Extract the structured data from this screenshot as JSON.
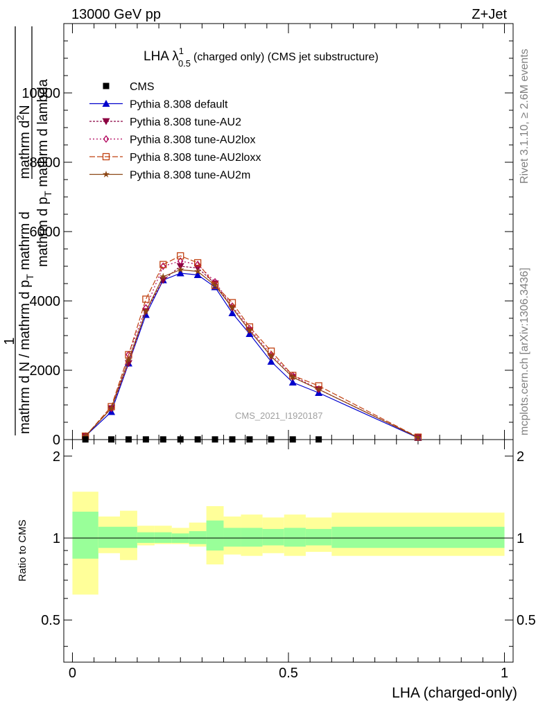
{
  "header": {
    "left": "13000 GeV pp",
    "right": "Z+Jet"
  },
  "title": {
    "prefix": "LHA λ",
    "sup": "1",
    "sub": "0.5",
    "suffix": "(charged only) (CMS jet substructure)"
  },
  "side_labels": {
    "rivet": "Rivet 3.1.10, ≥ 2.6M events",
    "mcplots": "mcplots.cern.ch [arXiv:1306.3436]"
  },
  "watermark": "CMS_2021_I1920187",
  "ylabel": {
    "one": "1",
    "den": "mathrm d N / mathrm d p",
    "den_sub": "T",
    "den_tail": " mathrm d",
    "num1": "mathrm d",
    "num1_sup": "2",
    "num1_tail": "N",
    "num2": "mathrm d p",
    "num2_sub": "T",
    "num2_tail": " mathrm d lambda"
  },
  "ratio_ylabel": "Ratio to CMS",
  "xlabel": "LHA (charged-only)",
  "main_ticks": {
    "y": [
      {
        "value": 0,
        "label": "0"
      },
      {
        "value": 2000,
        "label": "2000"
      },
      {
        "value": 4000,
        "label": "4000"
      },
      {
        "value": 6000,
        "label": "6000"
      },
      {
        "value": 8000,
        "label": "8000"
      },
      {
        "value": 10000,
        "label": "10000"
      }
    ]
  },
  "ratio_ticks": {
    "y": [
      {
        "value": 0.5,
        "label": "0.5"
      },
      {
        "value": 1,
        "label": "1"
      },
      {
        "value": 2,
        "label": "2"
      }
    ]
  },
  "x_ticks": [
    {
      "value": 0,
      "label": "0"
    },
    {
      "value": 0.5,
      "label": "0.5"
    },
    {
      "value": 1,
      "label": "1"
    }
  ],
  "legend": [
    {
      "label": "CMS",
      "marker": "square",
      "color": "#000000",
      "dash": ""
    },
    {
      "label": "Pythia 8.308 default",
      "marker": "triangle-up",
      "color": "#0000cc",
      "dash": ""
    },
    {
      "label": "Pythia 8.308 tune-AU2",
      "marker": "triangle-down",
      "color": "#8b0040",
      "dash": "3,2"
    },
    {
      "label": "Pythia 8.308 tune-AU2lox",
      "marker": "diamond-open",
      "color": "#b0005a",
      "dash": "2,3"
    },
    {
      "label": "Pythia 8.308 tune-AU2loxx",
      "marker": "square-open",
      "color": "#c04010",
      "dash": "8,3"
    },
    {
      "label": "Pythia 8.308 tune-AU2m",
      "marker": "star",
      "color": "#8b4513",
      "dash": ""
    }
  ],
  "chart_data": {
    "type": "line",
    "xlim": [
      -0.02,
      1.02
    ],
    "ylim": [
      0,
      12000
    ],
    "ratio_ylim": [
      0.35,
      2.3
    ],
    "ratio_log": true,
    "x": [
      0.03,
      0.09,
      0.13,
      0.17,
      0.21,
      0.25,
      0.29,
      0.33,
      0.37,
      0.41,
      0.46,
      0.51,
      0.57,
      0.8
    ],
    "data": {
      "name": "CMS",
      "x": [
        0.03,
        0.09,
        0.13,
        0.17,
        0.21,
        0.25,
        0.29,
        0.33,
        0.37,
        0.41,
        0.46,
        0.51,
        0.57
      ],
      "values": [
        5,
        5,
        5,
        5,
        5,
        5,
        5,
        5,
        5,
        5,
        5,
        5,
        5
      ]
    },
    "series": [
      {
        "name": "Pythia 8.308 default",
        "values": [
          100,
          800,
          2200,
          3600,
          4600,
          4800,
          4750,
          4400,
          3650,
          3050,
          2250,
          1650,
          1350,
          50
        ]
      },
      {
        "name": "Pythia 8.308 tune-AU2",
        "values": [
          100,
          900,
          2200,
          3700,
          4600,
          5000,
          4950,
          4500,
          3800,
          3150,
          2400,
          1800,
          1450,
          60
        ]
      },
      {
        "name": "Pythia 8.308 tune-AU2lox",
        "values": [
          100,
          900,
          2450,
          3800,
          5000,
          5150,
          5050,
          4550,
          3850,
          3200,
          2450,
          1850,
          1450,
          70
        ]
      },
      {
        "name": "Pythia 8.308 tune-AU2loxx",
        "values": [
          100,
          950,
          2450,
          4050,
          5050,
          5300,
          5100,
          4450,
          3950,
          3250,
          2550,
          1850,
          1550,
          70
        ]
      },
      {
        "name": "Pythia 8.308 tune-AU2m",
        "values": [
          100,
          900,
          2300,
          3700,
          4700,
          4900,
          4850,
          4450,
          3800,
          3150,
          2400,
          1800,
          1450,
          60
        ]
      }
    ],
    "ratio_line": 1,
    "ratio_bands": [
      {
        "x0": 0.0,
        "x1": 0.06,
        "inner": [
          0.84,
          1.25
        ],
        "outer": [
          0.62,
          1.48
        ]
      },
      {
        "x0": 0.06,
        "x1": 0.11,
        "inner": [
          0.92,
          1.1
        ],
        "outer": [
          0.88,
          1.2
        ]
      },
      {
        "x0": 0.11,
        "x1": 0.15,
        "inner": [
          0.92,
          1.1
        ],
        "outer": [
          0.83,
          1.26
        ]
      },
      {
        "x0": 0.15,
        "x1": 0.19,
        "inner": [
          0.96,
          1.05
        ],
        "outer": [
          0.94,
          1.11
        ]
      },
      {
        "x0": 0.19,
        "x1": 0.23,
        "inner": [
          0.96,
          1.05
        ],
        "outer": [
          0.95,
          1.11
        ]
      },
      {
        "x0": 0.23,
        "x1": 0.27,
        "inner": [
          0.96,
          1.04
        ],
        "outer": [
          0.95,
          1.09
        ]
      },
      {
        "x0": 0.27,
        "x1": 0.31,
        "inner": [
          0.95,
          1.06
        ],
        "outer": [
          0.93,
          1.14
        ]
      },
      {
        "x0": 0.31,
        "x1": 0.35,
        "inner": [
          0.9,
          1.16
        ],
        "outer": [
          0.8,
          1.31
        ]
      },
      {
        "x0": 0.35,
        "x1": 0.39,
        "inner": [
          0.93,
          1.09
        ],
        "outer": [
          0.87,
          1.2
        ]
      },
      {
        "x0": 0.39,
        "x1": 0.44,
        "inner": [
          0.93,
          1.09
        ],
        "outer": [
          0.86,
          1.22
        ]
      },
      {
        "x0": 0.44,
        "x1": 0.49,
        "inner": [
          0.94,
          1.08
        ],
        "outer": [
          0.88,
          1.19
        ]
      },
      {
        "x0": 0.49,
        "x1": 0.54,
        "inner": [
          0.93,
          1.09
        ],
        "outer": [
          0.86,
          1.22
        ]
      },
      {
        "x0": 0.54,
        "x1": 0.6,
        "inner": [
          0.94,
          1.08
        ],
        "outer": [
          0.89,
          1.19
        ]
      },
      {
        "x0": 0.6,
        "x1": 1.0,
        "inner": [
          0.92,
          1.1
        ],
        "outer": [
          0.86,
          1.24
        ]
      }
    ],
    "band_colors": {
      "inner": "#99ff99",
      "outer": "#ffff99"
    },
    "grid": false,
    "legend_position": "top-left"
  }
}
